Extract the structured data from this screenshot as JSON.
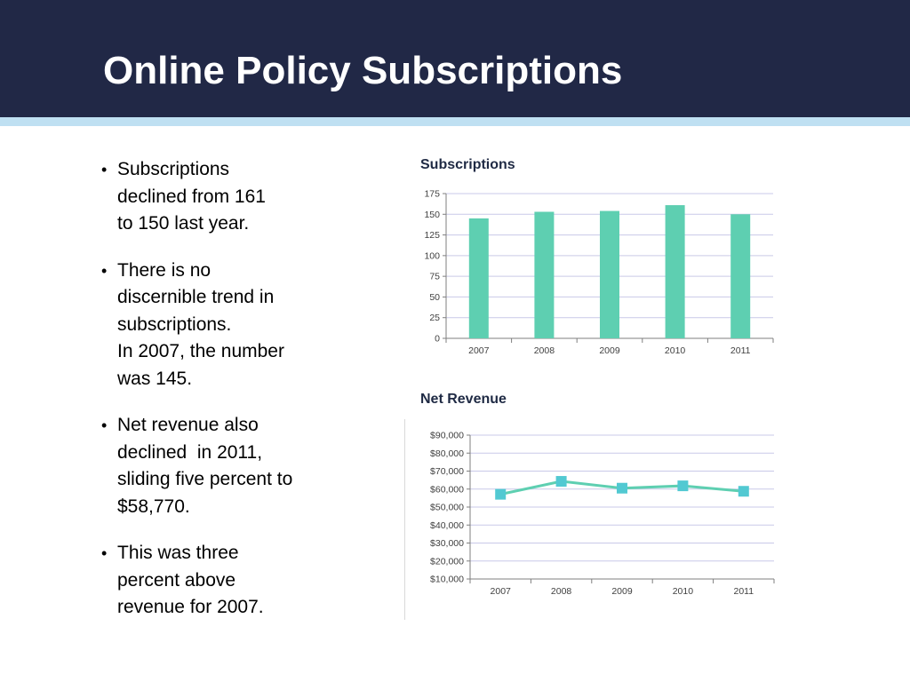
{
  "slide": {
    "title": "Online Policy Subscriptions",
    "bullets": [
      {
        "lines": [
          "Subscriptions",
          "declined from 161",
          "to 150 last year."
        ]
      },
      {
        "lines": [
          "There is no",
          "discernible trend in",
          "subscriptions.",
          "In 2007, the number",
          "was 145."
        ]
      },
      {
        "lines": [
          "Net revenue also",
          "declined  in 2011,",
          "sliding five percent to",
          "$58,770."
        ]
      },
      {
        "lines": [
          "This was three",
          "percent above",
          "revenue for 2007."
        ]
      }
    ]
  },
  "colors": {
    "header": "#212846",
    "stripe": "#bfe0f2",
    "bar": "#5ecfb1",
    "line": "#5ecfb1",
    "marker": "#52c9d2",
    "grid": "#c9c9e8"
  },
  "chart_data": [
    {
      "type": "bar",
      "title": "Subscriptions",
      "categories": [
        "2007",
        "2008",
        "2009",
        "2010",
        "2011"
      ],
      "values": [
        145,
        153,
        154,
        161,
        150
      ],
      "ylim": [
        0,
        175
      ],
      "yticks": [
        0,
        25,
        50,
        75,
        100,
        125,
        150,
        175
      ],
      "ytick_labels": [
        "0",
        "25",
        "50",
        "75",
        "100",
        "125",
        "150",
        "175"
      ],
      "grid": true
    },
    {
      "type": "line",
      "title": "Net Revenue",
      "categories": [
        "2007",
        "2008",
        "2009",
        "2010",
        "2011"
      ],
      "values": [
        57100,
        64300,
        60500,
        61800,
        58770
      ],
      "ylim": [
        10000,
        90000
      ],
      "yticks": [
        10000,
        20000,
        30000,
        40000,
        50000,
        60000,
        70000,
        80000,
        90000
      ],
      "ytick_labels": [
        "$10,000",
        "$20,000",
        "$30,000",
        "$40,000",
        "$50,000",
        "$60,000",
        "$70,000",
        "$80,000",
        "$90,000"
      ],
      "grid": true
    }
  ]
}
